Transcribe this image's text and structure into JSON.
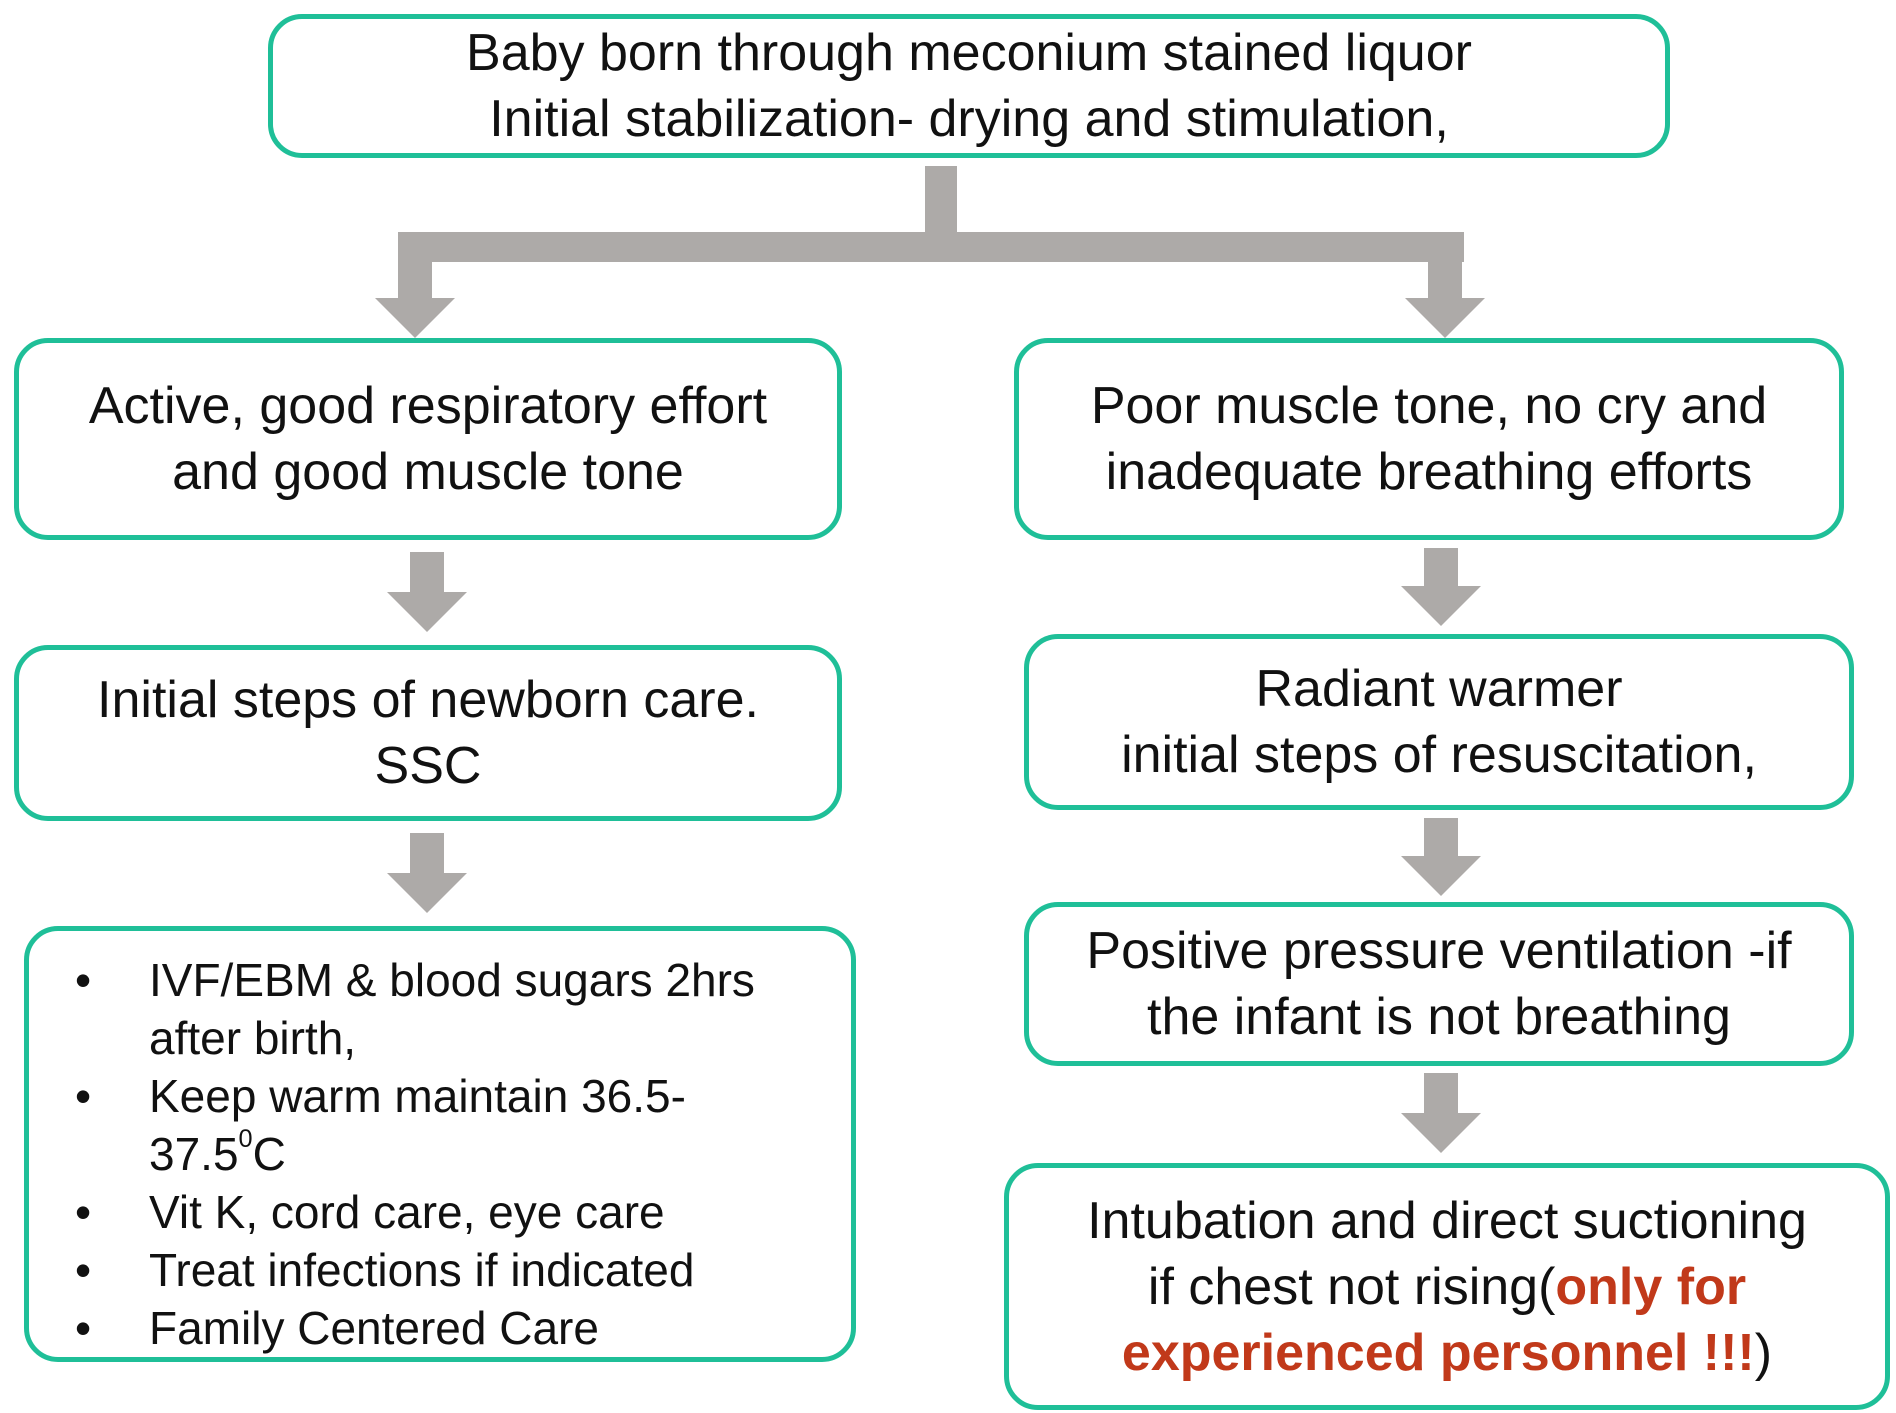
{
  "colors": {
    "box_border": "#1fbf98",
    "arrow": "#adaaa8",
    "warning_text": "#c1391a"
  },
  "top": {
    "line1": "Baby born through meconium stained liquor",
    "line2": "Initial stabilization- drying and stimulation,"
  },
  "left": {
    "step1": {
      "line1": "Active, good respiratory effort",
      "line2": "and good muscle tone"
    },
    "step2": {
      "line1": "Initial steps of newborn care.",
      "line2": "SSC"
    },
    "care_items": {
      "item1_line1": "IVF/EBM & blood sugars 2hrs",
      "item1_line2": "after birth,",
      "item2_line1": "Keep warm maintain 36.5-",
      "item2_line2_pre": "37.5",
      "item2_line2_sup": "0",
      "item2_line2_post": "C",
      "item3": "Vit K, cord care, eye care",
      "item4": "Treat infections if indicated",
      "item5": "Family Centered Care"
    }
  },
  "right": {
    "step1": {
      "line1": "Poor muscle tone, no cry and",
      "line2": "inadequate breathing efforts"
    },
    "step2": {
      "line1": "Radiant warmer",
      "line2": "initial steps of resuscitation,"
    },
    "step3": {
      "line1": "Positive pressure ventilation -if",
      "line2": "the infant is not breathing"
    },
    "step4": {
      "line1": "Intubation and direct suctioning",
      "line2_pre": "if chest not rising(",
      "line2_warn": "only for",
      "line3_warn": "experienced personnel !!!",
      "line3_post": ")"
    }
  }
}
